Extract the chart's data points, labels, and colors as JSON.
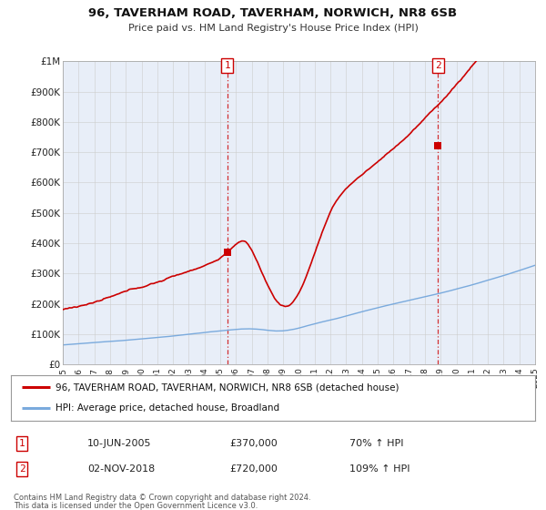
{
  "title_line1": "96, TAVERHAM ROAD, TAVERHAM, NORWICH, NR8 6SB",
  "title_line2": "Price paid vs. HM Land Registry's House Price Index (HPI)",
  "bg_color": "#e8eef8",
  "grid_color": "#cccccc",
  "sale1_date": 2005.44,
  "sale1_value": 370000,
  "sale2_date": 2018.84,
  "sale2_value": 720000,
  "hpi_line_color": "#7aaadd",
  "property_line_color": "#cc0000",
  "legend_property": "96, TAVERHAM ROAD, TAVERHAM, NORWICH, NR8 6SB (detached house)",
  "legend_hpi": "HPI: Average price, detached house, Broadland",
  "footer_line1": "Contains HM Land Registry data © Crown copyright and database right 2024.",
  "footer_line2": "This data is licensed under the Open Government Licence v3.0.",
  "table_row1": [
    "1",
    "10-JUN-2005",
    "£370,000",
    "70% ↑ HPI"
  ],
  "table_row2": [
    "2",
    "02-NOV-2018",
    "£720,000",
    "109% ↑ HPI"
  ],
  "yticks": [
    0,
    100000,
    200000,
    300000,
    400000,
    500000,
    600000,
    700000,
    800000,
    900000,
    1000000
  ],
  "ytick_labels": [
    "£0",
    "£100K",
    "£200K",
    "£300K",
    "£400K",
    "£500K",
    "£600K",
    "£700K",
    "£800K",
    "£900K",
    "£1M"
  ]
}
